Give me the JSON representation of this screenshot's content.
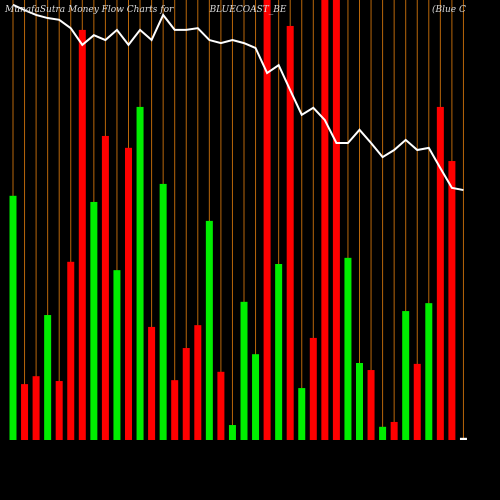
{
  "chart_data": {
    "type": "bar",
    "title": "MunafaSutra Money Flow Charts for",
    "symbol": "BLUECOAST_BE",
    "company": "(Blue   C",
    "categories": [
      null,
      null,
      null,
      null,
      null,
      null,
      null,
      null,
      null,
      null,
      null,
      null,
      null,
      null,
      null,
      null,
      null,
      null,
      null,
      null,
      null,
      null,
      null,
      null,
      null,
      null,
      null,
      null,
      null,
      null,
      null,
      null,
      null,
      null,
      null,
      null,
      null,
      null,
      null,
      null
    ],
    "values": [
      55.5,
      12.7,
      14.5,
      28.4,
      13.4,
      40.5,
      93.2,
      54.1,
      69.1,
      38.6,
      66.4,
      75.7,
      25.7,
      58.2,
      13.6,
      20.9,
      26.1,
      49.8,
      15.5,
      3.4,
      31.4,
      19.5,
      100,
      40,
      94.1,
      11.8,
      23.2,
      100,
      100,
      41.4,
      17.5,
      15.9,
      3,
      4.1,
      29.3,
      17.3,
      31.1,
      75.7,
      63.4,
      0.5
    ],
    "colors": [
      "#00ee00",
      "#ff0000",
      "#ff0000",
      "#00ee00",
      "#ff0000",
      "#ff0000",
      "#ff0000",
      "#00ee00",
      "#ff0000",
      "#00ee00",
      "#ff0000",
      "#00ee00",
      "#ff0000",
      "#00ee00",
      "#ff0000",
      "#ff0000",
      "#ff0000",
      "#00ee00",
      "#ff0000",
      "#00ee00",
      "#00ee00",
      "#00ee00",
      "#ff0000",
      "#00ee00",
      "#ff0000",
      "#00ee00",
      "#ff0000",
      "#ff0000",
      "#ff0000",
      "#00ee00",
      "#00ee00",
      "#ff0000",
      "#00ee00",
      "#ff0000",
      "#00ee00",
      "#ff0000",
      "#00ee00",
      "#ff0000",
      "#ff0000",
      "#ffffff"
    ],
    "line": {
      "color": "#ffffff",
      "values": [
        98.9,
        97.7,
        96.6,
        95.9,
        95.5,
        93.6,
        89.8,
        92,
        90.9,
        93.2,
        89.8,
        93.2,
        90.9,
        96.6,
        93.2,
        93.2,
        93.6,
        90.9,
        90.2,
        90.9,
        90.2,
        89.1,
        83.4,
        85.2,
        79.5,
        73.9,
        75.5,
        72.7,
        67.5,
        67.5,
        70.5,
        67.5,
        64.3,
        65.9,
        68.2,
        65.9,
        66.4,
        61.8,
        57.3,
        56.8
      ]
    },
    "ylim": [
      0,
      100
    ]
  }
}
